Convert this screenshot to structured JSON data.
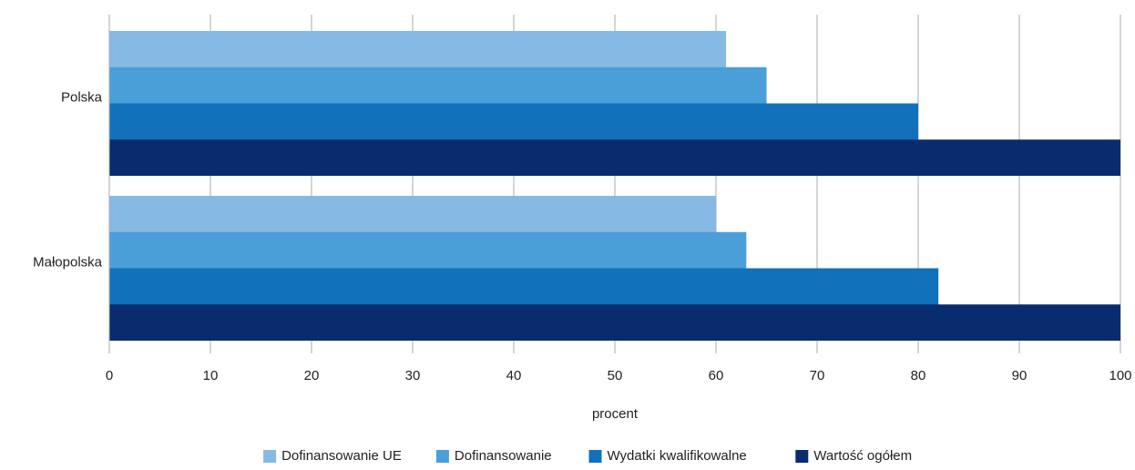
{
  "chart_data": {
    "type": "bar",
    "orientation": "horizontal",
    "bar_layout": "overlapping",
    "categories": [
      "Polska",
      "Małopolska"
    ],
    "series": [
      {
        "name": "Dofinansowanie UE",
        "values": [
          61,
          60
        ],
        "color": "#86B9E3"
      },
      {
        "name": "Dofinansowanie",
        "values": [
          65,
          63
        ],
        "color": "#4A9FD8"
      },
      {
        "name": "Wydatki kwalifikowalne",
        "values": [
          80,
          82
        ],
        "color": "#1172BB"
      },
      {
        "name": "Wartość ogółem",
        "values": [
          100,
          100
        ],
        "color": "#082C6E"
      }
    ],
    "xlabel": "procent",
    "xlim": [
      0,
      100
    ],
    "xticks": [
      "0",
      "10",
      "20",
      "30",
      "40",
      "50",
      "60",
      "70",
      "80",
      "90",
      "100"
    ],
    "grid": "vertical",
    "legend_position": "bottom",
    "gridline_color": "#ABABAB"
  }
}
